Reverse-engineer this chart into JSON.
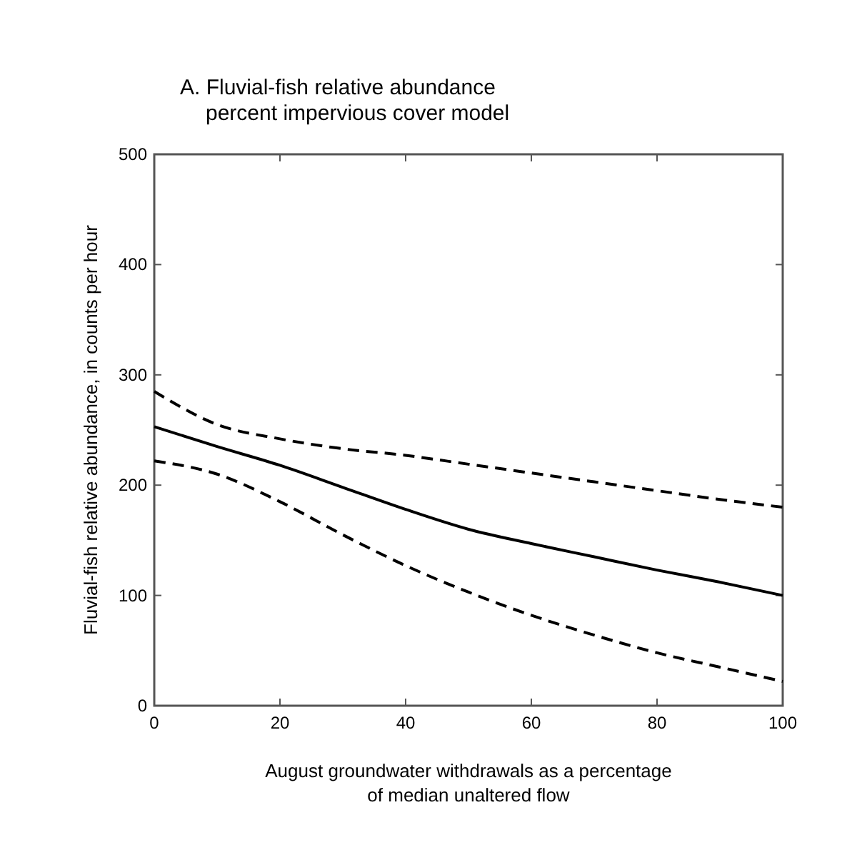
{
  "chart_data": {
    "type": "line",
    "title": "A. Fluvial-fish relative abundance\npercent impervious cover model",
    "xlabel": "August groundwater withdrawals as a percentage\nof median unaltered flow",
    "ylabel": "Fluvial-fish relative abundance, in counts per hour",
    "x": [
      0,
      10,
      20,
      30,
      40,
      50,
      60,
      70,
      80,
      90,
      100
    ],
    "xlim": [
      0,
      100
    ],
    "xticks": [
      0,
      20,
      40,
      60,
      80,
      100
    ],
    "ylim": [
      0,
      500
    ],
    "yticks": [
      0,
      100,
      200,
      300,
      400,
      500
    ],
    "grid": false,
    "marker": "none",
    "series": [
      {
        "color": "#000000",
        "line_style": "solid",
        "values": [
          253,
          235,
          218,
          198,
          178,
          160,
          147,
          135,
          123,
          112,
          100
        ]
      },
      {
        "color": "#000000",
        "line_style": "dashed",
        "values": [
          285,
          255,
          242,
          233,
          227,
          219,
          211,
          203,
          195,
          187,
          180
        ]
      },
      {
        "color": "#000000",
        "line_style": "dashed",
        "values": [
          222,
          210,
          185,
          155,
          127,
          103,
          82,
          64,
          48,
          35,
          22
        ]
      }
    ]
  }
}
